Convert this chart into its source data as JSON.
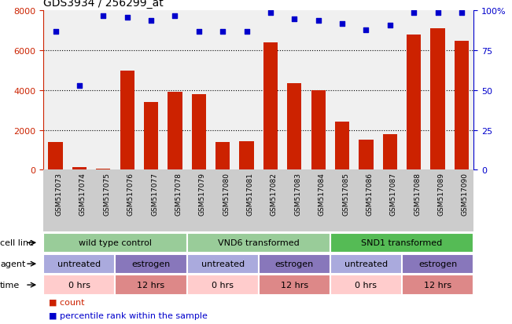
{
  "title": "GDS3934 / 256299_at",
  "samples": [
    "GSM517073",
    "GSM517074",
    "GSM517075",
    "GSM517076",
    "GSM517077",
    "GSM517078",
    "GSM517079",
    "GSM517080",
    "GSM517081",
    "GSM517082",
    "GSM517083",
    "GSM517084",
    "GSM517085",
    "GSM517086",
    "GSM517087",
    "GSM517088",
    "GSM517089",
    "GSM517090"
  ],
  "counts": [
    1400,
    130,
    50,
    5000,
    3400,
    3900,
    3800,
    1400,
    1450,
    6400,
    4350,
    4000,
    2400,
    1500,
    1800,
    6800,
    7100,
    6500
  ],
  "percentiles": [
    87,
    53,
    97,
    96,
    94,
    97,
    87,
    87,
    87,
    99,
    95,
    94,
    92,
    88,
    91,
    99,
    99,
    99
  ],
  "ylim_left": [
    0,
    8000
  ],
  "ylim_right": [
    0,
    100
  ],
  "yticks_left": [
    0,
    2000,
    4000,
    6000,
    8000
  ],
  "yticks_right": [
    0,
    25,
    50,
    75,
    100
  ],
  "bar_color": "#cc2200",
  "dot_color": "#0000cc",
  "cell_line_groups": [
    {
      "label": "wild type control",
      "start": 0,
      "end": 6,
      "color": "#99cc99"
    },
    {
      "label": "VND6 transformed",
      "start": 6,
      "end": 12,
      "color": "#99cc99"
    },
    {
      "label": "SND1 transformed",
      "start": 12,
      "end": 18,
      "color": "#55bb55"
    }
  ],
  "agent_groups": [
    {
      "label": "untreated",
      "start": 0,
      "end": 3,
      "color": "#aaaadd"
    },
    {
      "label": "estrogen",
      "start": 3,
      "end": 6,
      "color": "#8877bb"
    },
    {
      "label": "untreated",
      "start": 6,
      "end": 9,
      "color": "#aaaadd"
    },
    {
      "label": "estrogen",
      "start": 9,
      "end": 12,
      "color": "#8877bb"
    },
    {
      "label": "untreated",
      "start": 12,
      "end": 15,
      "color": "#aaaadd"
    },
    {
      "label": "estrogen",
      "start": 15,
      "end": 18,
      "color": "#8877bb"
    }
  ],
  "time_groups": [
    {
      "label": "0 hrs",
      "start": 0,
      "end": 3,
      "color": "#ffcccc"
    },
    {
      "label": "12 hrs",
      "start": 3,
      "end": 6,
      "color": "#dd8888"
    },
    {
      "label": "0 hrs",
      "start": 6,
      "end": 9,
      "color": "#ffcccc"
    },
    {
      "label": "12 hrs",
      "start": 9,
      "end": 12,
      "color": "#dd8888"
    },
    {
      "label": "0 hrs",
      "start": 12,
      "end": 15,
      "color": "#ffcccc"
    },
    {
      "label": "12 hrs",
      "start": 15,
      "end": 18,
      "color": "#dd8888"
    }
  ],
  "bg_color": "#ffffff",
  "xticklabel_bg": "#cccccc",
  "grid_color": "#000000",
  "left_axis_color": "#cc2200",
  "right_axis_color": "#0000cc",
  "row_labels": [
    "cell line",
    "agent",
    "time"
  ],
  "legend_items": [
    {
      "marker": "s",
      "color": "#cc2200",
      "label": "count"
    },
    {
      "marker": "s",
      "color": "#0000cc",
      "label": "percentile rank within the sample"
    }
  ]
}
